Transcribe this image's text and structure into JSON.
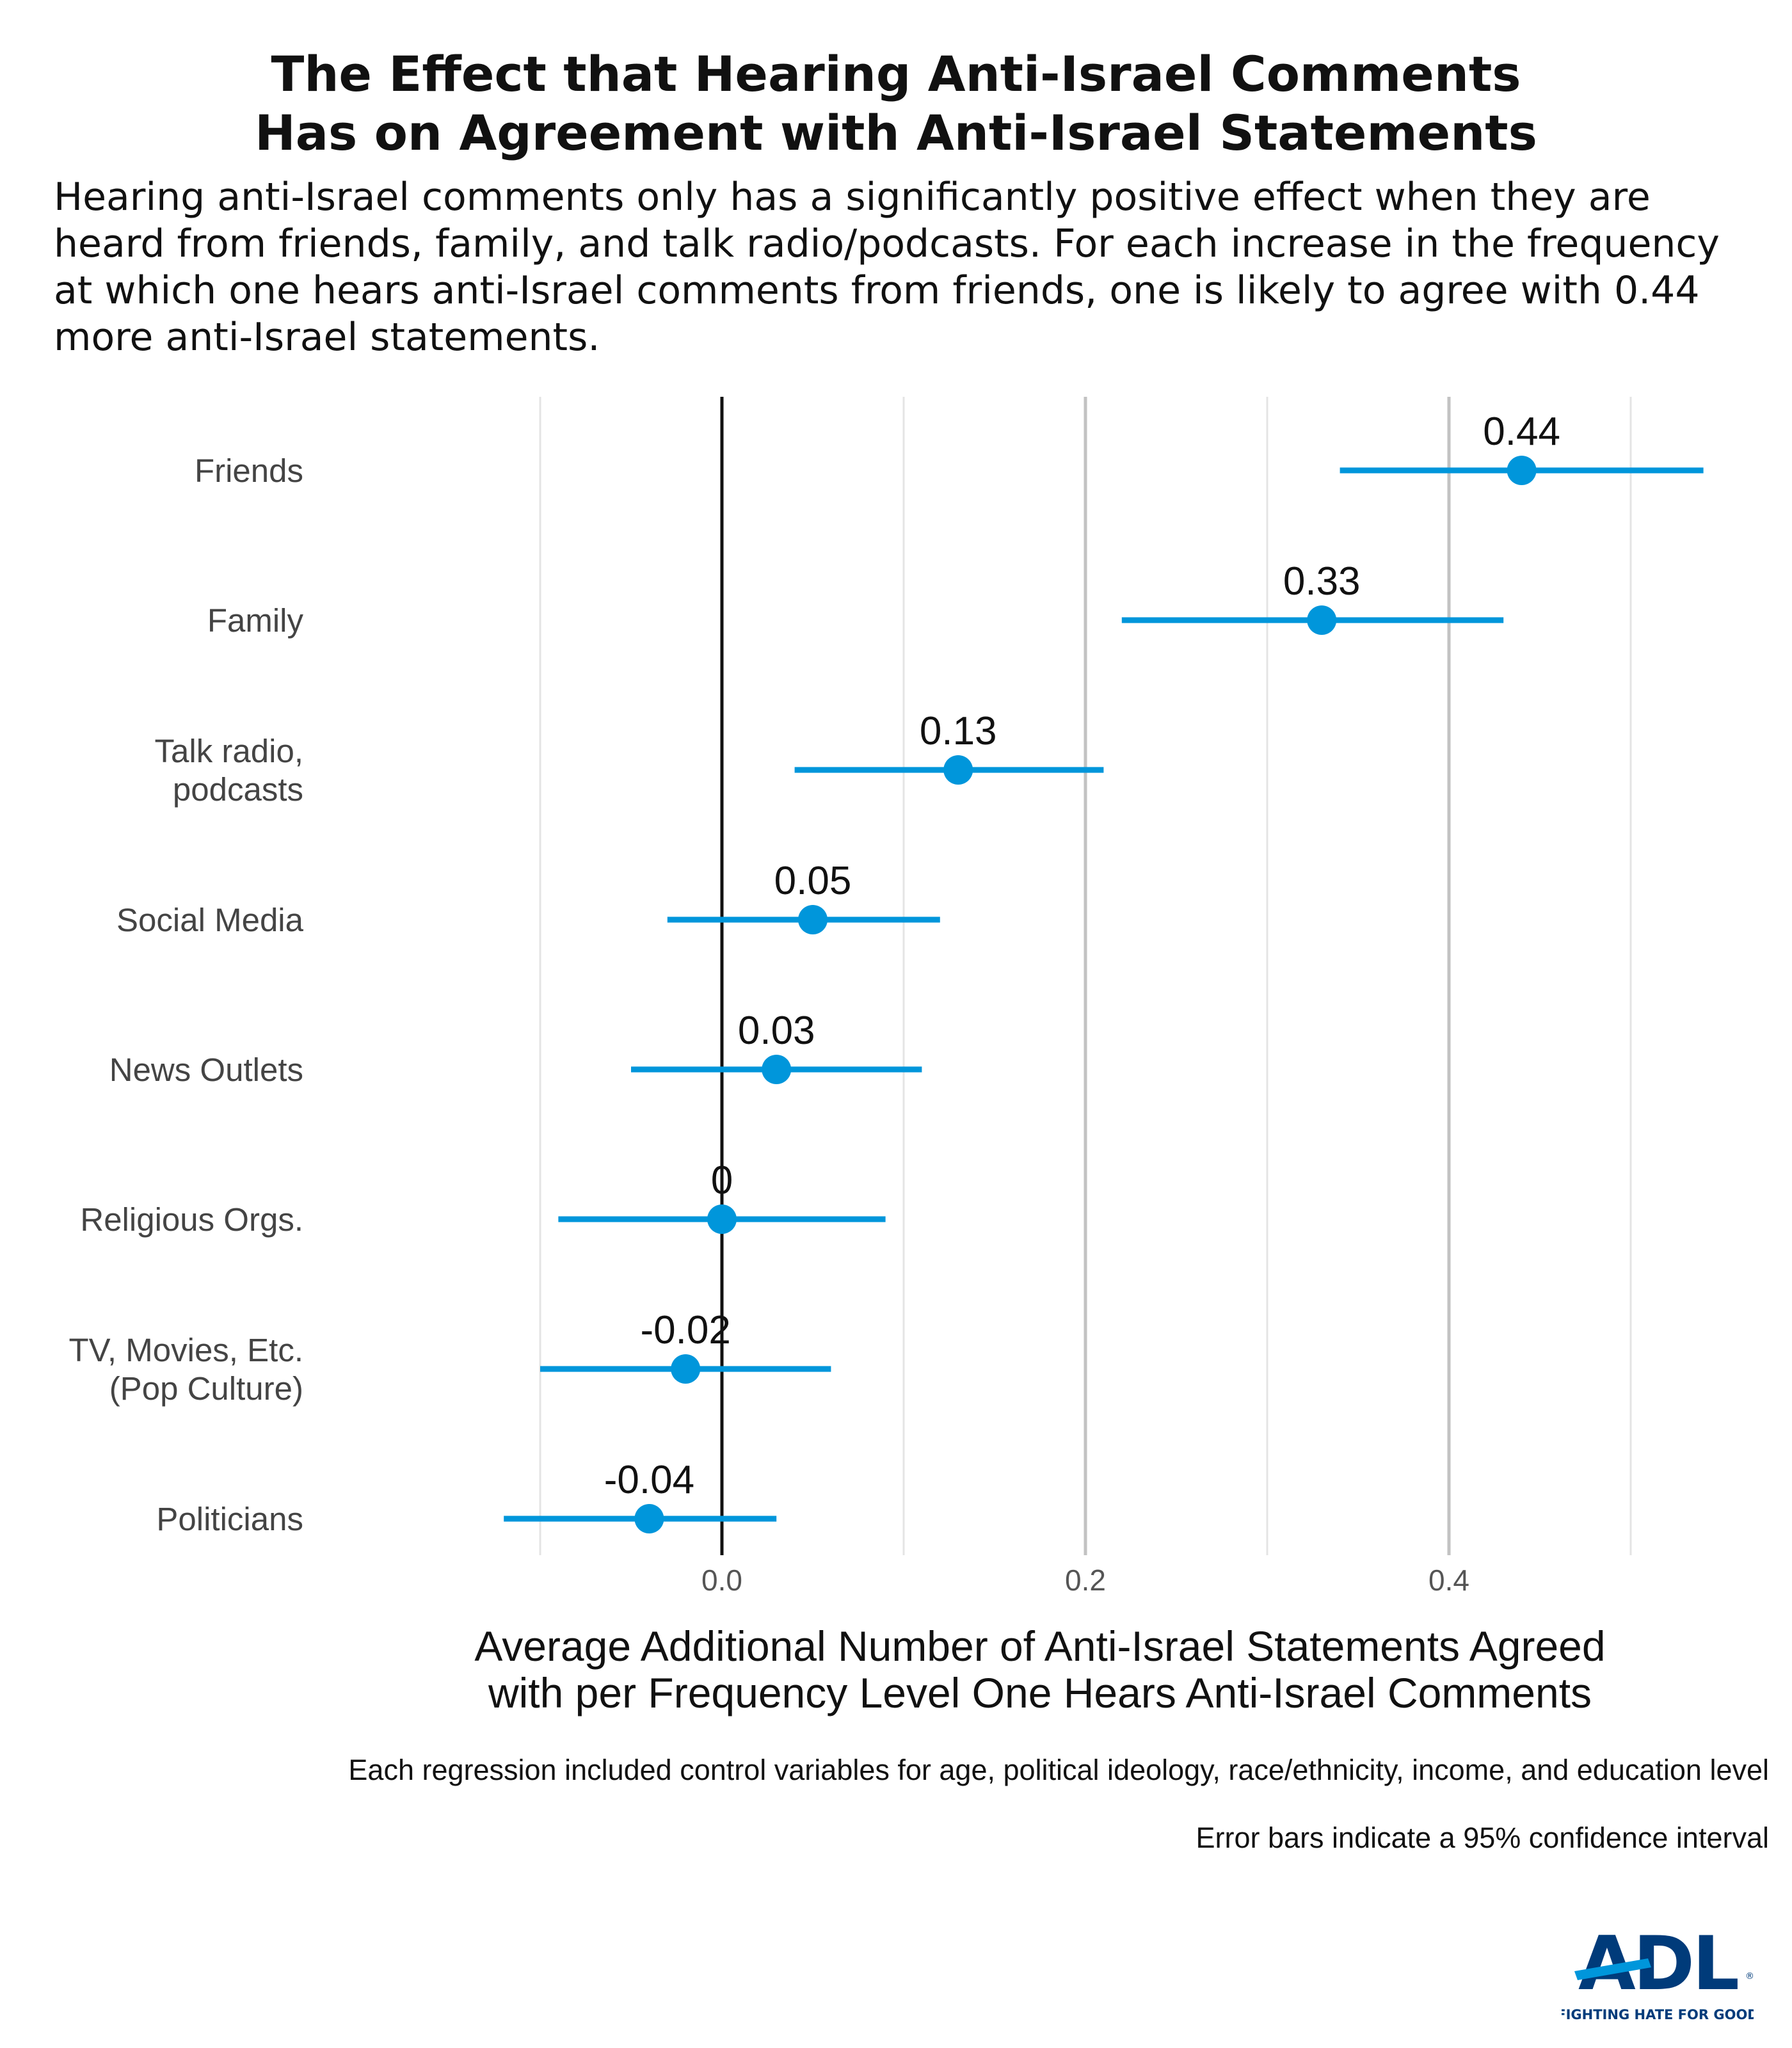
{
  "chart_data": {
    "type": "scatter",
    "title_lines": [
      "The Effect that Hearing Anti-Israel Comments",
      "Has on Agreement with Anti-Israel Statements"
    ],
    "subtitle": "Hearing anti-Israel comments only has a significantly positive effect when they are heard from friends, family, and talk radio/podcasts. For each increase in the frequency at which one hears anti-Israel comments from friends, one is likely to agree with 0.44 more anti-Israel statements.",
    "xlabel_lines": [
      "Average Additional Number of Anti-Israel Statements Agreed",
      "with per Frequency Level One Hears Anti-Israel Comments"
    ],
    "xlim": [
      -0.2,
      0.55
    ],
    "x_ticks": [
      {
        "value": 0.0,
        "label": "0.0"
      },
      {
        "value": 0.2,
        "label": "0.2"
      },
      {
        "value": 0.4,
        "label": "0.4"
      }
    ],
    "minor_gridlines": [
      -0.1,
      0.1,
      0.3,
      0.5
    ],
    "reference_line": 0,
    "grid": true,
    "point_color": "#0096DB",
    "points": [
      {
        "label_lines": [
          "Friends"
        ],
        "value": 0.44,
        "value_label": "0.44",
        "ci_low": 0.34,
        "ci_high": 0.54
      },
      {
        "label_lines": [
          "Family"
        ],
        "value": 0.33,
        "value_label": "0.33",
        "ci_low": 0.22,
        "ci_high": 0.43
      },
      {
        "label_lines": [
          "Talk radio,",
          "podcasts"
        ],
        "value": 0.13,
        "value_label": "0.13",
        "ci_low": 0.04,
        "ci_high": 0.21
      },
      {
        "label_lines": [
          "Social Media"
        ],
        "value": 0.05,
        "value_label": "0.05",
        "ci_low": -0.03,
        "ci_high": 0.12
      },
      {
        "label_lines": [
          "News Outlets"
        ],
        "value": 0.03,
        "value_label": "0.03",
        "ci_low": -0.05,
        "ci_high": 0.11
      },
      {
        "label_lines": [
          "Religious Orgs."
        ],
        "value": 0.0,
        "value_label": "0",
        "ci_low": -0.09,
        "ci_high": 0.09
      },
      {
        "label_lines": [
          "TV, Movies, Etc.",
          "(Pop Culture)"
        ],
        "value": -0.02,
        "value_label": "-0.02",
        "ci_low": -0.1,
        "ci_high": 0.06
      },
      {
        "label_lines": [
          "Politicians"
        ],
        "value": -0.04,
        "value_label": "-0.04",
        "ci_low": -0.12,
        "ci_high": 0.03
      }
    ]
  },
  "footnotes": [
    "Each regression included control variables for age, political ideology, race/ethnicity, income, and education level",
    "Error bars indicate a 95% confidence interval"
  ],
  "logo": {
    "text": "ADL",
    "tagline": "FIGHTING HATE FOR GOOD",
    "color": "#003B7A",
    "accent_color": "#0096DB"
  }
}
